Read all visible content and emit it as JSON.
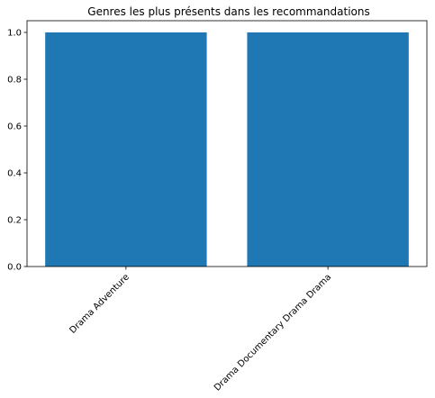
{
  "chart_data": {
    "type": "bar",
    "title": "Genres les plus présents dans les recommandations",
    "xlabel": "",
    "ylabel": "",
    "categories": [
      "Drama Adventure",
      "Drama Documentary Drama Drama"
    ],
    "values": [
      1.0,
      1.0
    ],
    "ylim": [
      0,
      1.05
    ],
    "yticks": [
      "0.0",
      "0.2",
      "0.4",
      "0.6",
      "0.8",
      "1.0"
    ],
    "x_tick_rotation_deg": 45,
    "grid": false,
    "legend": "none",
    "colors": {
      "bar": "#1f77b4",
      "axis": "#000000",
      "background": "#ffffff"
    }
  }
}
